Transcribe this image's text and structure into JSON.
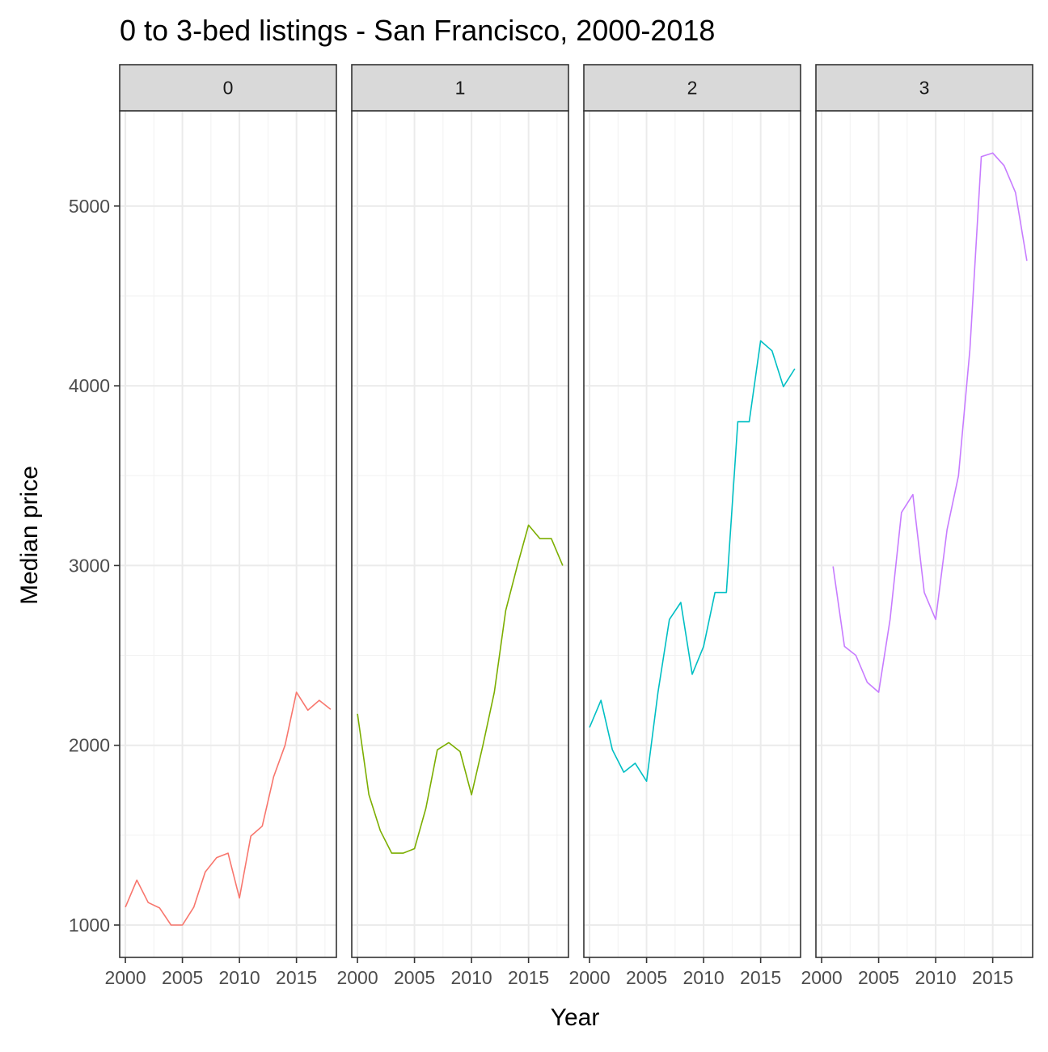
{
  "chart_data": {
    "type": "line",
    "title": "0 to 3-bed listings - San Francisco, 2000-2018",
    "xlabel": "Year",
    "ylabel": "Median price",
    "xlim": [
      1999.5,
      2018.5
    ],
    "ylim": [
      820,
      5530
    ],
    "x_ticks": [
      2000,
      2005,
      2010,
      2015
    ],
    "x_tick_labels": [
      "2000",
      "2005",
      "2010",
      "2015"
    ],
    "y_ticks": [
      1000,
      2000,
      3000,
      4000,
      5000
    ],
    "y_tick_labels": [
      "1000",
      "2000",
      "3000",
      "4000",
      "5000"
    ],
    "grid": true,
    "facet_by": "bedrooms",
    "panels": [
      {
        "label": "0",
        "color": "#F8766D",
        "x": [
          2000,
          2001,
          2002,
          2003,
          2004,
          2005,
          2006,
          2007,
          2008,
          2009,
          2010,
          2011,
          2012,
          2013,
          2014,
          2015,
          2016,
          2017,
          2018
        ],
        "values": [
          1100,
          1250,
          1125,
          1095,
          1000,
          1000,
          1100,
          1295,
          1375,
          1400,
          1150,
          1495,
          1550,
          1825,
          2000,
          2295,
          2195,
          2250,
          2200
        ]
      },
      {
        "label": "1",
        "color": "#7CAE00",
        "x": [
          2000,
          2001,
          2002,
          2003,
          2004,
          2005,
          2006,
          2007,
          2008,
          2009,
          2010,
          2011,
          2012,
          2013,
          2014,
          2015,
          2016,
          2017,
          2018
        ],
        "values": [
          2175,
          1725,
          1525,
          1400,
          1400,
          1425,
          1650,
          1975,
          2015,
          1965,
          1725,
          2000,
          2295,
          2750,
          2995,
          3225,
          3150,
          3150,
          3000
        ]
      },
      {
        "label": "2",
        "color": "#00BFC4",
        "x": [
          2000,
          2001,
          2002,
          2003,
          2004,
          2005,
          2006,
          2007,
          2008,
          2009,
          2010,
          2011,
          2012,
          2013,
          2014,
          2015,
          2016,
          2017,
          2018
        ],
        "values": [
          2100,
          2250,
          1975,
          1850,
          1900,
          1800,
          2295,
          2700,
          2795,
          2395,
          2550,
          2850,
          2850,
          3800,
          3800,
          4250,
          4195,
          3995,
          4095
        ]
      },
      {
        "label": "3",
        "color": "#C77CFF",
        "x": [
          2001,
          2002,
          2003,
          2004,
          2005,
          2006,
          2007,
          2008,
          2009,
          2010,
          2011,
          2012,
          2013,
          2014,
          2015,
          2016,
          2017,
          2018
        ],
        "values": [
          2995,
          2550,
          2500,
          2350,
          2295,
          2700,
          3295,
          3395,
          2850,
          2700,
          3200,
          3500,
          4200,
          5275,
          5295,
          5225,
          5075,
          4695
        ]
      }
    ]
  }
}
